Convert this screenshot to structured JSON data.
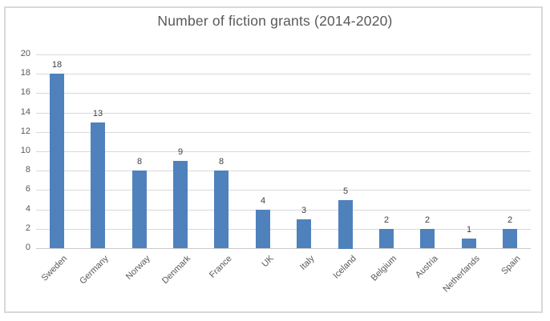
{
  "frame": {
    "border_color": "#D9D9D9",
    "background": "#FFFFFF"
  },
  "chart_data": {
    "type": "bar",
    "title": "Number of fiction grants (2014-2020)",
    "categories": [
      "Sweden",
      "Germany",
      "Norway",
      "Denmark",
      "France",
      "UK",
      "Italy",
      "Iceland",
      "Belgium",
      "Austria",
      "Netherlands",
      "Spain"
    ],
    "values": [
      18,
      13,
      8,
      9,
      8,
      4,
      3,
      5,
      2,
      2,
      1,
      2
    ],
    "xlabel": "",
    "ylabel": "",
    "ylim": [
      0,
      20
    ],
    "ytick_step": 2,
    "grid": true,
    "legend": "none",
    "data_labels": true,
    "bar_color": "#4F81BD",
    "gridline_color": "#D9D9D9",
    "axis_line_color": "#C9C9C9",
    "title_color": "#595959",
    "tick_label_color": "#595959",
    "value_label_color": "#404040"
  }
}
